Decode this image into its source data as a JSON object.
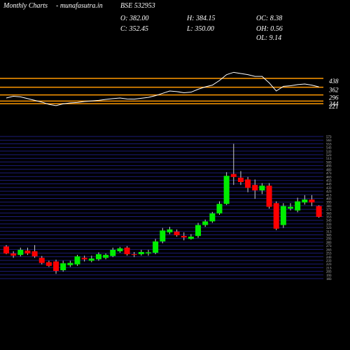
{
  "header": {
    "site": "Monthly Charts",
    "source": "- munafasutra.in",
    "symbol": "BSE 532953",
    "open": "O: 382.00",
    "high": "H: 384.15",
    "oc": "OC: 8.38",
    "close": "C: 352.45",
    "low": "L: 350.00",
    "oh": "OH: 0.56",
    "ol": "OL: 9.14"
  },
  "chart_data": [
    {
      "type": "line",
      "color": "#ffffff",
      "level_color": "#ff9900",
      "ylim": [
        150,
        510
      ],
      "levels": [
        438,
        362,
        296,
        244,
        221
      ],
      "values": [
        270,
        285,
        280,
        265,
        250,
        235,
        215,
        205,
        220,
        228,
        232,
        240,
        245,
        250,
        258,
        265,
        270,
        262,
        260,
        268,
        275,
        290,
        310,
        330,
        325,
        315,
        320,
        345,
        365,
        380,
        420,
        470,
        490,
        480,
        470,
        455,
        455,
        400,
        330,
        370,
        375,
        385,
        390,
        380,
        365
      ]
    },
    {
      "type": "candlestick",
      "up_color": "#00ee00",
      "down_color": "#ff0000",
      "wick_color": "#cccccc",
      "grid_color": "#1c1c78",
      "ylim": [
        183,
        573
      ],
      "yticks": [
        183,
        193,
        203,
        213,
        223,
        233,
        243,
        253,
        263,
        273,
        283,
        293,
        303,
        313,
        323,
        333,
        343,
        353,
        363,
        373,
        383,
        393,
        403,
        413,
        423,
        433,
        443,
        453,
        463,
        473,
        483,
        493,
        503,
        513,
        523,
        533,
        543,
        553,
        563,
        573
      ],
      "open": [
        271,
        252,
        248,
        260,
        258,
        240,
        228,
        230,
        206,
        220,
        222,
        240,
        232,
        236,
        240,
        245,
        258,
        268,
        250,
        250,
        252,
        254,
        285,
        310,
        312,
        300,
        292,
        300,
        330,
        340,
        362,
        388,
        470,
        460,
        455,
        440,
        425,
        438,
        390,
        330,
        375,
        370,
        392,
        400,
        382
      ],
      "high": [
        275,
        258,
        268,
        268,
        275,
        245,
        232,
        235,
        232,
        232,
        248,
        246,
        246,
        255,
        252,
        268,
        270,
        272,
        256,
        262,
        262,
        292,
        322,
        325,
        318,
        310,
        305,
        336,
        345,
        366,
        395,
        475,
        553,
        478,
        462,
        455,
        445,
        445,
        395,
        390,
        390,
        405,
        412,
        412,
        384.15
      ],
      "low": [
        250,
        240,
        244,
        248,
        240,
        222,
        215,
        196,
        202,
        215,
        218,
        230,
        228,
        232,
        236,
        242,
        254,
        246,
        242,
        246,
        246,
        250,
        280,
        305,
        298,
        288,
        290,
        295,
        325,
        336,
        358,
        385,
        440,
        440,
        420,
        402,
        415,
        375,
        316,
        322,
        370,
        365,
        386,
        382,
        350
      ],
      "close": [
        252,
        246,
        262,
        252,
        244,
        226,
        218,
        204,
        225,
        226,
        244,
        236,
        238,
        250,
        248,
        262,
        266,
        250,
        248,
        256,
        255,
        285,
        315,
        318,
        302,
        296,
        298,
        330,
        340,
        362,
        388,
        465,
        462,
        448,
        432,
        425,
        438,
        380,
        320,
        382,
        380,
        395,
        400,
        392,
        352.45
      ]
    }
  ]
}
